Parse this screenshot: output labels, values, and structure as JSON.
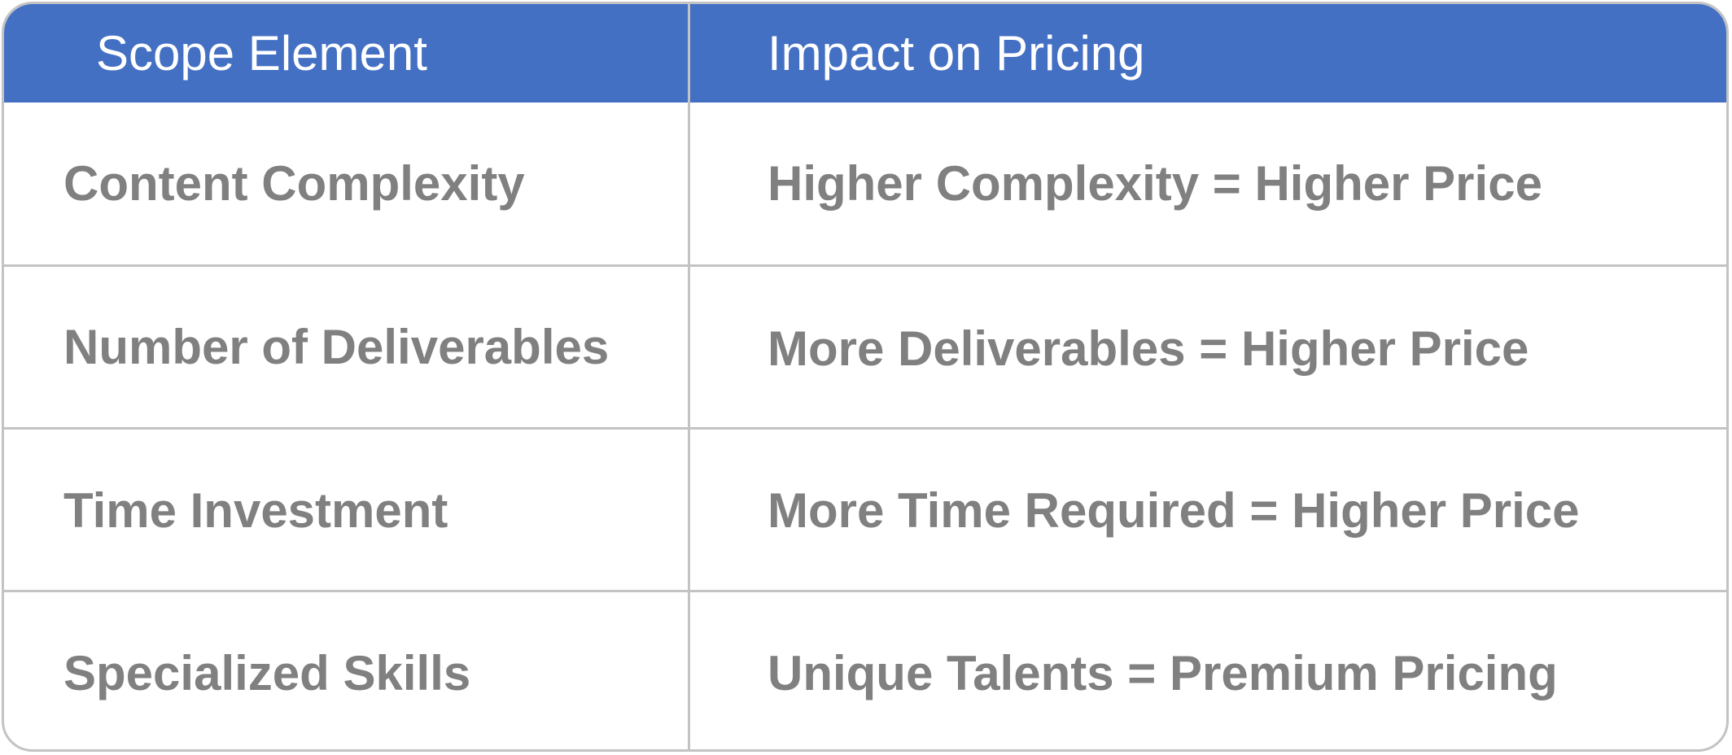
{
  "table": {
    "headers": [
      "Scope Element",
      "Impact on Pricing"
    ],
    "rows": [
      [
        "Content Complexity",
        "Higher Complexity = Higher Price"
      ],
      [
        "Number of Deliverables",
        "More Deliverables = Higher Price"
      ],
      [
        "Time Investment",
        "More Time Required = Higher Price"
      ],
      [
        "Specialized Skills",
        "Unique Talents = Premium Pricing"
      ]
    ]
  },
  "colors": {
    "header_background": "#4470c4",
    "header_text": "#ffffff",
    "body_text": "#808080",
    "grid_lines": "#c3c3c3"
  }
}
